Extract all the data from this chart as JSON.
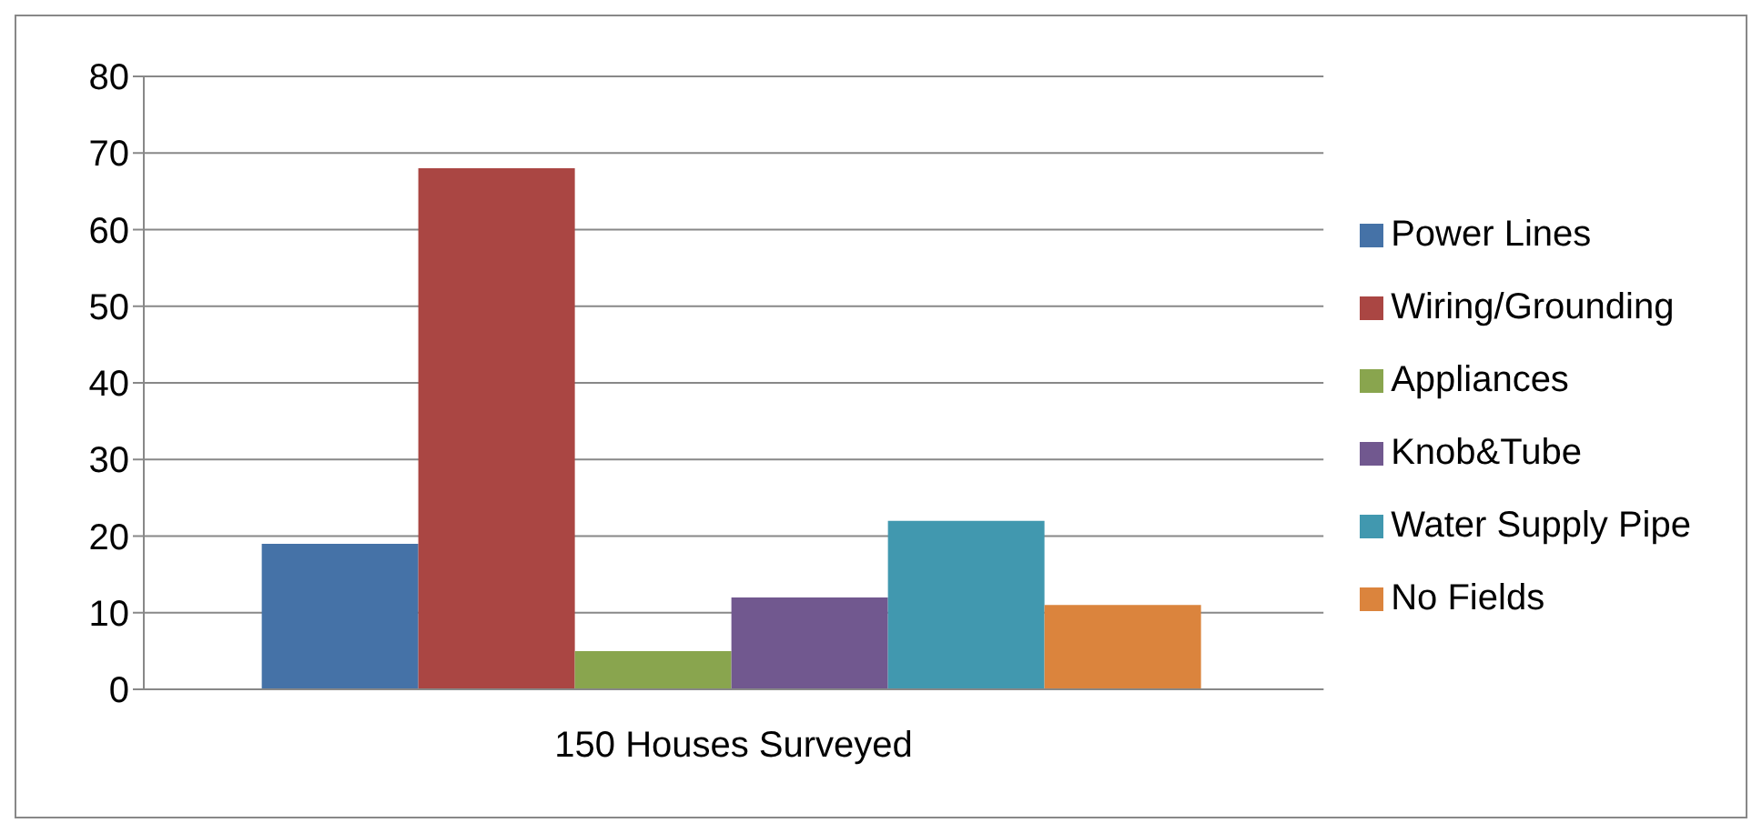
{
  "chart_data": {
    "type": "bar",
    "categories": [
      "150 Houses Surveyed"
    ],
    "series": [
      {
        "name": "Power Lines",
        "color": "#4572a7",
        "values": [
          19
        ]
      },
      {
        "name": "Wiring/Grounding",
        "color": "#aa4643",
        "values": [
          68
        ]
      },
      {
        "name": "Appliances",
        "color": "#89a54e",
        "values": [
          5
        ]
      },
      {
        "name": "Knob&Tube",
        "color": "#71588f",
        "values": [
          12
        ]
      },
      {
        "name": "Water Supply Pipe",
        "color": "#4198af",
        "values": [
          22
        ]
      },
      {
        "name": "No Fields",
        "color": "#db843d",
        "values": [
          11
        ]
      }
    ],
    "ylim": [
      0,
      80
    ],
    "yticks": [
      0,
      10,
      20,
      30,
      40,
      50,
      60,
      70,
      80
    ],
    "grid": "y",
    "legend": "right"
  }
}
